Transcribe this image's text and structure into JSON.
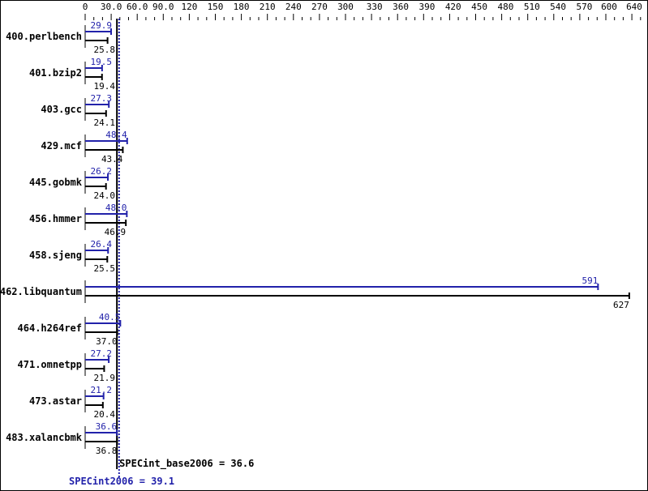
{
  "chart_data": {
    "type": "bar",
    "orientation": "horizontal",
    "categories": [
      "400.perlbench",
      "401.bzip2",
      "403.gcc",
      "429.mcf",
      "445.gobmk",
      "456.hmmer",
      "458.sjeng",
      "462.libquantum",
      "464.h264ref",
      "471.omnetpp",
      "473.astar",
      "483.xalancbmk"
    ],
    "series": [
      {
        "name": "SPECint2006",
        "color": "#2222aa",
        "values": [
          29.9,
          19.5,
          27.3,
          48.4,
          26.2,
          48.0,
          26.4,
          591,
          40.5,
          27.2,
          21.2,
          36.6
        ]
      },
      {
        "name": "SPECint_base2006",
        "color": "#000000",
        "values": [
          25.8,
          19.4,
          24.1,
          43.4,
          24.0,
          46.9,
          25.5,
          627,
          37.0,
          21.9,
          20.4,
          36.8
        ]
      }
    ],
    "value_labels": {
      "peak": [
        "29.9",
        "19.5",
        "27.3",
        "48.4",
        "26.2",
        "48.0",
        "26.4",
        "591",
        "40.5",
        "27.2",
        "21.2",
        "36.6"
      ],
      "base": [
        "25.8",
        "19.4",
        "24.1",
        "43.4",
        "24.0",
        "46.9",
        "25.5",
        "627",
        "37.0",
        "21.9",
        "20.4",
        "36.8"
      ]
    },
    "xaxis_position": "top",
    "xticks": [
      0,
      30,
      60,
      90,
      120,
      150,
      180,
      210,
      240,
      270,
      300,
      330,
      360,
      390,
      420,
      450,
      480,
      510,
      540,
      570,
      600,
      640
    ],
    "xtick_labels": [
      "0",
      "30.0",
      "60.0",
      "90.0",
      "120",
      "150",
      "180",
      "210",
      "240",
      "270",
      "300",
      "330",
      "360",
      "390",
      "420",
      "450",
      "480",
      "510",
      "540",
      "570",
      "600",
      "640"
    ],
    "xlim": [
      0,
      640
    ],
    "reference_lines": [
      {
        "label": "SPECint_base2006 = 36.6",
        "value": 36.6,
        "color": "#000000",
        "style": "solid"
      },
      {
        "label": "SPECint2006 = 39.1",
        "value": 39.1,
        "color": "#2222aa",
        "style": "dotted"
      }
    ],
    "grid": false
  }
}
